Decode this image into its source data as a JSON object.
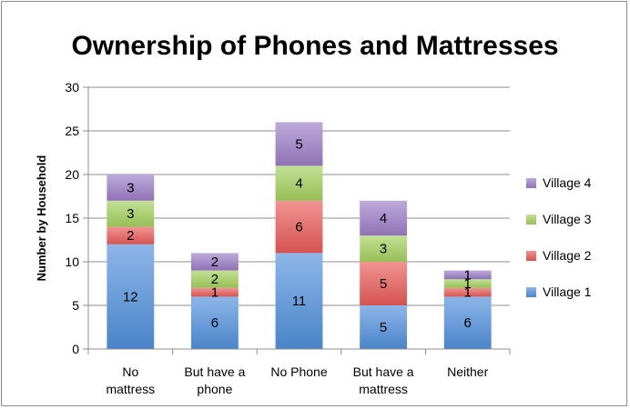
{
  "chart_data": {
    "type": "bar",
    "stacked": true,
    "title": "Ownership of Phones and Mattresses",
    "ylabel": "Number by Household",
    "xlabel": "",
    "ylim": [
      0,
      30
    ],
    "yticks": [
      0,
      5,
      10,
      15,
      20,
      25,
      30
    ],
    "grid": true,
    "legend": "right",
    "categories": [
      [
        "No",
        "mattress"
      ],
      [
        "But have a",
        "phone"
      ],
      [
        "No Phone"
      ],
      [
        "But have a",
        "mattress"
      ],
      [
        "Neither"
      ]
    ],
    "series": [
      {
        "name": "Village 1",
        "color": "#4f8fdc",
        "values": [
          12,
          6,
          11,
          5,
          6
        ]
      },
      {
        "name": "Village 2",
        "color": "#e85a57",
        "values": [
          2,
          1,
          6,
          5,
          1
        ]
      },
      {
        "name": "Village 3",
        "color": "#a3d05c",
        "values": [
          3,
          2,
          4,
          3,
          1
        ]
      },
      {
        "name": "Village 4",
        "color": "#9b7cc6",
        "values": [
          3,
          2,
          5,
          4,
          1
        ]
      }
    ]
  }
}
